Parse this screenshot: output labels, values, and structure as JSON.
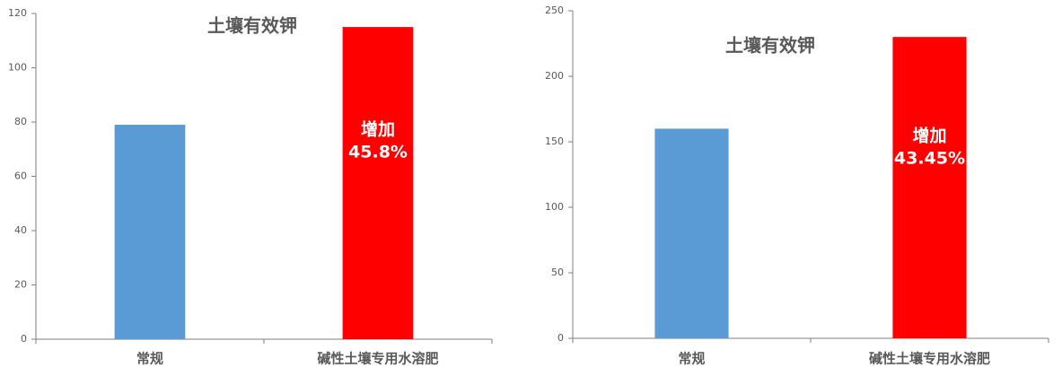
{
  "chart_data": [
    {
      "type": "bar",
      "title": "土壤有效钾",
      "categories": [
        "常规",
        "碱性土壤专用水溶肥"
      ],
      "values": [
        79,
        115
      ],
      "colors": [
        "#5b9bd5",
        "#ff0000"
      ],
      "ylim": [
        0,
        120
      ],
      "yticks": [
        0,
        20,
        40,
        60,
        80,
        100,
        120
      ],
      "annotation": [
        "增加",
        "45.8%"
      ]
    },
    {
      "type": "bar",
      "title": "土壤有效钾",
      "categories": [
        "常规",
        "碱性土壤专用水溶肥"
      ],
      "values": [
        160,
        230
      ],
      "colors": [
        "#5b9bd5",
        "#ff0000"
      ],
      "ylim": [
        0,
        250
      ],
      "yticks": [
        0,
        50,
        100,
        150,
        200,
        250
      ],
      "annotation": [
        "增加",
        "43.45%"
      ]
    }
  ]
}
